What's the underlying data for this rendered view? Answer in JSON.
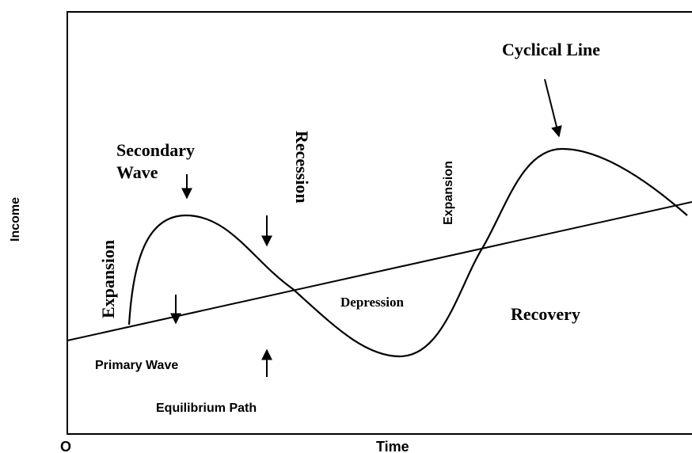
{
  "labels": {
    "cyclical_line": "Cyclical Line",
    "secondary_wave": [
      "Secondary",
      "Wave"
    ],
    "recession": "Recession",
    "expansion_left": "Expansion",
    "expansion_right": "Expansion",
    "depression": "Depression",
    "recovery": "Recovery",
    "primary_wave": "Primary Wave",
    "equilibrium_path": "Equilibrium Path",
    "y_axis": "Income",
    "x_axis": "Time",
    "origin": "O"
  }
}
